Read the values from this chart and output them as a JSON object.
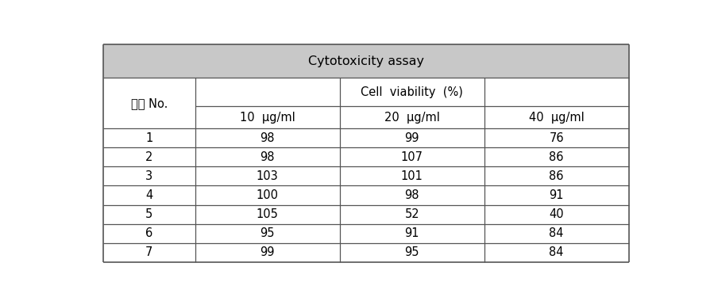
{
  "title": "Cytotoxicity assay",
  "col1_header": "시료 No.",
  "col2_header": "Cell  viability  (%)",
  "sub_col_headers": [
    "10  μg/ml",
    "20  μg/ml",
    "40  μg/ml"
  ],
  "row_labels": [
    "1",
    "2",
    "3",
    "4",
    "5",
    "6",
    "7"
  ],
  "data": [
    [
      98,
      99,
      76
    ],
    [
      98,
      107,
      86
    ],
    [
      103,
      101,
      86
    ],
    [
      100,
      98,
      91
    ],
    [
      105,
      52,
      40
    ],
    [
      95,
      91,
      84
    ],
    [
      99,
      95,
      84
    ]
  ],
  "title_bg": "#c8c8c8",
  "header_bg": "#ffffff",
  "cell_bg": "#ffffff",
  "line_color": "#555555",
  "title_fontsize": 11.5,
  "header_fontsize": 10.5,
  "cell_fontsize": 10.5,
  "fig_width": 8.99,
  "fig_height": 3.8
}
